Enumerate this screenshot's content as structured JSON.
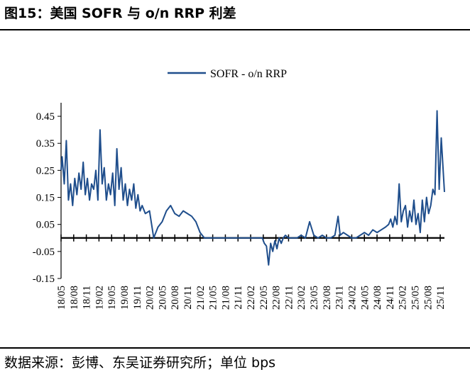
{
  "header": {
    "title": "图15：美国 SOFR 与 o/n RRP 利差"
  },
  "footer": {
    "source": "数据来源：彭博、东吴证券研究所；单位 bps"
  },
  "chart_data": {
    "type": "line",
    "title": "图15：美国 SOFR 与 o/n RRP 利差",
    "xlabel": "",
    "ylabel": "",
    "ylim": [
      -0.15,
      0.5
    ],
    "yticks": [
      -0.15,
      -0.05,
      0.05,
      0.15,
      0.25,
      0.35,
      0.45
    ],
    "ytick_labels": [
      "-0.15",
      "-0.05",
      "0.05",
      "0.15",
      "0.25",
      "0.35",
      "0.45"
    ],
    "xtick_labels": [
      "18/05",
      "18/08",
      "18/11",
      "19/02",
      "19/05",
      "19/08",
      "19/11",
      "20/02",
      "20/05",
      "20/08",
      "20/11",
      "21/02",
      "21/05",
      "21/08",
      "21/11",
      "22/02",
      "22/05",
      "22/08",
      "22/11",
      "23/02",
      "23/05",
      "23/08",
      "23/11",
      "24/02",
      "24/05",
      "24/08",
      "24/11",
      "25/02",
      "25/05",
      "25/08",
      "25/11"
    ],
    "legend": {
      "position": "top-center",
      "entries": [
        "SOFR - o/n RRP"
      ]
    },
    "grid": false,
    "color": "#1f4e8c",
    "series": [
      {
        "name": "SOFR - o/n RRP",
        "x": [
          "2018-05",
          "2018-05",
          "2018-06",
          "2018-06",
          "2018-07",
          "2018-07",
          "2018-08",
          "2018-08",
          "2018-09",
          "2018-09",
          "2018-10",
          "2018-10",
          "2018-11",
          "2018-11",
          "2018-12",
          "2018-12",
          "2019-01",
          "2019-01",
          "2019-02",
          "2019-02",
          "2019-03",
          "2019-03",
          "2019-04",
          "2019-04",
          "2019-05",
          "2019-05",
          "2019-06",
          "2019-06",
          "2019-07",
          "2019-07",
          "2019-08",
          "2019-08",
          "2019-09",
          "2019-09",
          "2019-10",
          "2019-10",
          "2019-11",
          "2019-11",
          "2019-12",
          "2019-12",
          "2020-01",
          "2020-02",
          "2020-03",
          "2020-04",
          "2020-05",
          "2020-06",
          "2020-07",
          "2020-08",
          "2020-09",
          "2020-10",
          "2020-11",
          "2020-12",
          "2021-01",
          "2021-02",
          "2021-03",
          "2021-04",
          "2021-06",
          "2021-09",
          "2021-12",
          "2022-03",
          "2022-04",
          "2022-05",
          "2022-05",
          "2022-06",
          "2022-06",
          "2022-07",
          "2022-07",
          "2022-08",
          "2022-08",
          "2022-09",
          "2022-09",
          "2022-10",
          "2022-10",
          "2022-11",
          "2022-12",
          "2023-01",
          "2023-02",
          "2023-03",
          "2023-04",
          "2023-05",
          "2023-06",
          "2023-07",
          "2023-08",
          "2023-09",
          "2023-10",
          "2023-11",
          "2023-11",
          "2023-12",
          "2024-01",
          "2024-02",
          "2024-03",
          "2024-04",
          "2024-05",
          "2024-06",
          "2024-07",
          "2024-08",
          "2024-09",
          "2024-10",
          "2024-11",
          "2024-11",
          "2024-12",
          "2024-12",
          "2025-01",
          "2025-01",
          "2025-02",
          "2025-02",
          "2025-03",
          "2025-03",
          "2025-04",
          "2025-04",
          "2025-05",
          "2025-05",
          "2025-06",
          "2025-06",
          "2025-07",
          "2025-07",
          "2025-08",
          "2025-08",
          "2025-09",
          "2025-09",
          "2025-10",
          "2025-10",
          "2025-11",
          "2025-11",
          "2025-12"
        ],
        "y": [
          0.25,
          0.3,
          0.2,
          0.36,
          0.14,
          0.2,
          0.12,
          0.22,
          0.16,
          0.24,
          0.18,
          0.28,
          0.16,
          0.22,
          0.14,
          0.2,
          0.18,
          0.25,
          0.14,
          0.4,
          0.2,
          0.26,
          0.14,
          0.2,
          0.16,
          0.24,
          0.12,
          0.33,
          0.18,
          0.26,
          0.14,
          0.2,
          0.12,
          0.18,
          0.14,
          0.2,
          0.11,
          0.16,
          0.1,
          0.12,
          0.09,
          0.1,
          0.0,
          0.04,
          0.06,
          0.1,
          0.12,
          0.09,
          0.08,
          0.1,
          0.09,
          0.08,
          0.06,
          0.02,
          0.0,
          0.0,
          0.0,
          0.0,
          0.0,
          0.0,
          0.0,
          0.0,
          -0.02,
          -0.03,
          -0.1,
          -0.02,
          -0.05,
          -0.01,
          -0.04,
          0.0,
          -0.02,
          0.0,
          0.01,
          0.0,
          0.0,
          0.0,
          0.01,
          0.0,
          0.06,
          0.01,
          0.0,
          0.01,
          0.0,
          0.0,
          0.01,
          0.08,
          0.01,
          0.02,
          0.01,
          0.0,
          0.0,
          0.01,
          0.02,
          0.01,
          0.03,
          0.02,
          0.03,
          0.04,
          0.05,
          0.07,
          0.04,
          0.08,
          0.05,
          0.2,
          0.06,
          0.1,
          0.12,
          0.04,
          0.1,
          0.06,
          0.14,
          0.05,
          0.09,
          0.02,
          0.14,
          0.06,
          0.15,
          0.09,
          0.12,
          0.18,
          0.16,
          0.47,
          0.18,
          0.37,
          0.17
        ]
      }
    ]
  }
}
